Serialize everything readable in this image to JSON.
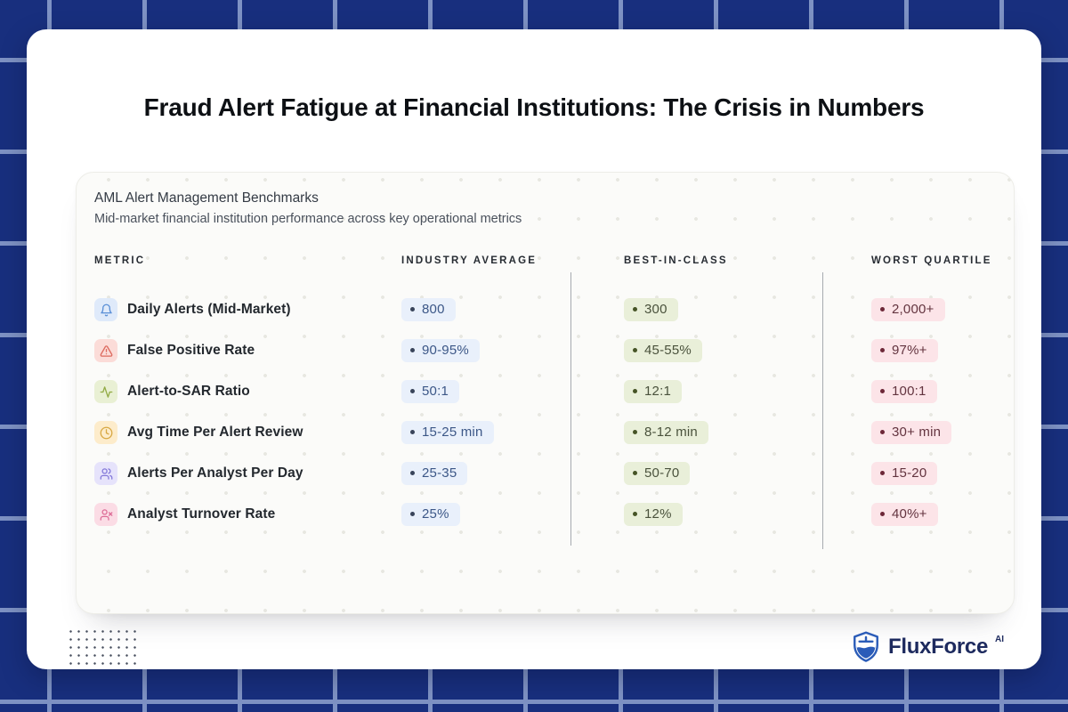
{
  "page": {
    "title": "Fraud Alert Fatigue at Financial Institutions: The Crisis in Numbers"
  },
  "panel": {
    "title": "AML Alert Management Benchmarks",
    "subtitle": "Mid-market financial institution performance across key operational metrics",
    "columns": {
      "metric": "METRIC",
      "industry_average": "INDUSTRY AVERAGE",
      "best_in_class": "BEST-IN-CLASS",
      "worst_quartile": "WORST QUARTILE"
    },
    "rows": [
      {
        "metric": "Daily Alerts (Mid-Market)",
        "icon": "bell-icon",
        "icon_color": "#5a8fd6",
        "icon_bg": "#dfeafa",
        "industry_average": "800",
        "best_in_class": "300",
        "worst_quartile": "2,000+"
      },
      {
        "metric": "False Positive Rate",
        "icon": "alert-triangle-icon",
        "icon_color": "#dd6a5e",
        "icon_bg": "#fbdcd8",
        "industry_average": "90-95%",
        "best_in_class": "45-55%",
        "worst_quartile": "97%+"
      },
      {
        "metric": "Alert-to-SAR Ratio",
        "icon": "activity-icon",
        "icon_color": "#93ab46",
        "icon_bg": "#e9f0d4",
        "industry_average": "50:1",
        "best_in_class": "12:1",
        "worst_quartile": "100:1"
      },
      {
        "metric": "Avg Time Per Alert Review",
        "icon": "clock-icon",
        "icon_color": "#d8a844",
        "icon_bg": "#fdeccb",
        "industry_average": "15-25 min",
        "best_in_class": "8-12 min",
        "worst_quartile": "30+ min"
      },
      {
        "metric": "Alerts Per Analyst Per Day",
        "icon": "users-icon",
        "icon_color": "#8379d9",
        "icon_bg": "#e6e3fb",
        "industry_average": "25-35",
        "best_in_class": "50-70",
        "worst_quartile": "15-20"
      },
      {
        "metric": "Analyst Turnover Rate",
        "icon": "user-x-icon",
        "icon_color": "#dd6d97",
        "icon_bg": "#fbdce5",
        "industry_average": "25%",
        "best_in_class": "12%",
        "worst_quartile": "40%+"
      }
    ],
    "value_colors": {
      "industry_average": {
        "bg": "#e9f0fb",
        "text": "#3c5787",
        "dot": "#39445a"
      },
      "best_in_class": {
        "bg": "#e9efd9",
        "text": "#4a523c",
        "dot": "#465426"
      },
      "worst_quartile": {
        "bg": "#fce4e8",
        "text": "#63343f",
        "dot": "#6d2838"
      }
    }
  },
  "theme": {
    "background_navy": "#182f7e",
    "grid_line": "#7e92c4",
    "brand_blue": "#2b5cb8",
    "brand_navy": "#1d2a5e"
  },
  "footer": {
    "brand": "FluxForce",
    "brand_suffix": "AI"
  },
  "chart_data": {
    "type": "table",
    "title": "AML Alert Management Benchmarks",
    "subtitle": "Mid-market financial institution performance across key operational metrics",
    "columns": [
      "METRIC",
      "INDUSTRY AVERAGE",
      "BEST-IN-CLASS",
      "WORST QUARTILE"
    ],
    "rows": [
      [
        "Daily Alerts (Mid-Market)",
        "800",
        "300",
        "2,000+"
      ],
      [
        "False Positive Rate",
        "90-95%",
        "45-55%",
        "97%+"
      ],
      [
        "Alert-to-SAR Ratio",
        "50:1",
        "12:1",
        "100:1"
      ],
      [
        "Avg Time Per Alert Review",
        "15-25 min",
        "8-12 min",
        "30+ min"
      ],
      [
        "Alerts Per Analyst Per Day",
        "25-35",
        "50-70",
        "15-20"
      ],
      [
        "Analyst Turnover Rate",
        "25%",
        "12%",
        "40%+"
      ]
    ],
    "legend_position": "none",
    "grid": false
  }
}
